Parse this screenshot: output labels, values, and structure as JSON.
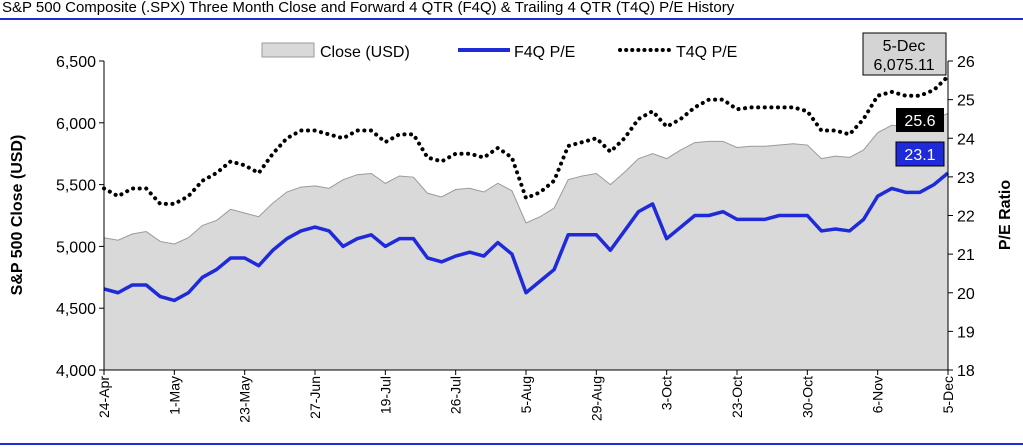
{
  "header": {
    "title": "S&P 500 Composite (.SPX) Three Month Close and Forward 4 QTR (F4Q) & Trailing 4 QTR (T4Q) P/E History"
  },
  "colors": {
    "rule": "#1f2ad8",
    "area_fill": "#d9d9d9",
    "area_stroke": "#9a9a9a",
    "f4q_line": "#1f2ad8",
    "t4q_line": "#000000",
    "t4q_label_bg": "#000000",
    "f4q_label_bg": "#1f2ad8",
    "callout_bg": "#d4d4d4"
  },
  "chart_data": {
    "type": "area",
    "title": "S&P 500 Composite (.SPX) Three Month Close and Forward 4 QTR (F4Q) & Trailing 4 QTR (T4Q) P/E History",
    "ylabel": "S&P 500 Close (USD)",
    "y2label": "P/E Ratio",
    "ylim": [
      4000,
      6500
    ],
    "y2lim": [
      18,
      26
    ],
    "yticks": [
      "4,000",
      "4,500",
      "5,000",
      "5,500",
      "6,000",
      "6,500"
    ],
    "y2ticks": [
      "18",
      "19",
      "20",
      "21",
      "22",
      "23",
      "24",
      "25",
      "26"
    ],
    "x_ticklabels": [
      "24-Apr",
      "1-May",
      "23-May",
      "27-Jun",
      "19-Jul",
      "26-Jul",
      "5-Aug",
      "29-Aug",
      "3-Oct",
      "23-Oct",
      "30-Oct",
      "6-Nov",
      "5-Dec"
    ],
    "legend": [
      "Close (USD)",
      "F4Q P/E",
      "T4Q P/E"
    ],
    "legend_position": "top",
    "grid": false,
    "series": [
      {
        "name": "Close (USD)",
        "axis": "left",
        "style": "area",
        "values": [
          5070,
          5050,
          5100,
          5120,
          5040,
          5020,
          5070,
          5170,
          5210,
          5300,
          5270,
          5240,
          5350,
          5440,
          5480,
          5490,
          5470,
          5540,
          5580,
          5590,
          5510,
          5570,
          5560,
          5430,
          5400,
          5460,
          5470,
          5440,
          5510,
          5450,
          5190,
          5240,
          5310,
          5540,
          5570,
          5590,
          5500,
          5600,
          5710,
          5750,
          5710,
          5780,
          5840,
          5850,
          5850,
          5800,
          5810,
          5810,
          5820,
          5830,
          5820,
          5710,
          5730,
          5720,
          5780,
          5920,
          5980,
          5970,
          5990,
          6030,
          6075.11
        ]
      },
      {
        "name": "F4Q P/E",
        "axis": "right",
        "style": "line",
        "values": [
          20.1,
          20.0,
          20.2,
          20.2,
          19.9,
          19.8,
          20.0,
          20.4,
          20.6,
          20.9,
          20.9,
          20.7,
          21.1,
          21.4,
          21.6,
          21.7,
          21.6,
          21.2,
          21.4,
          21.5,
          21.2,
          21.4,
          21.4,
          20.9,
          20.8,
          20.95,
          21.05,
          20.95,
          21.3,
          21.0,
          20.0,
          20.3,
          20.6,
          21.5,
          21.5,
          21.5,
          21.1,
          21.6,
          22.1,
          22.3,
          21.4,
          21.7,
          22.0,
          22.0,
          22.1,
          21.9,
          21.9,
          21.9,
          22.0,
          22.0,
          22.0,
          21.6,
          21.65,
          21.6,
          21.9,
          22.5,
          22.7,
          22.6,
          22.6,
          22.8,
          23.1
        ]
      },
      {
        "name": "T4Q P/E",
        "axis": "right",
        "style": "dotted",
        "values": [
          22.7,
          22.5,
          22.7,
          22.7,
          22.3,
          22.3,
          22.5,
          22.9,
          23.1,
          23.4,
          23.3,
          23.1,
          23.6,
          24.0,
          24.2,
          24.2,
          24.1,
          24.0,
          24.2,
          24.2,
          23.9,
          24.1,
          24.1,
          23.5,
          23.4,
          23.6,
          23.6,
          23.5,
          23.75,
          23.5,
          22.45,
          22.6,
          22.9,
          23.8,
          23.9,
          24.0,
          23.65,
          24.0,
          24.5,
          24.7,
          24.3,
          24.5,
          24.8,
          25.0,
          25.0,
          24.75,
          24.8,
          24.8,
          24.8,
          24.8,
          24.7,
          24.2,
          24.2,
          24.1,
          24.5,
          25.1,
          25.2,
          25.1,
          25.1,
          25.25,
          25.6
        ]
      }
    ],
    "tick_indices": [
      0,
      5,
      10,
      15,
      20,
      25,
      30,
      35,
      40,
      45,
      50,
      55,
      60
    ],
    "callouts": {
      "close": {
        "date": "5-Dec",
        "value": "6,075.11"
      },
      "t4q": "25.6",
      "f4q": "23.1"
    }
  }
}
